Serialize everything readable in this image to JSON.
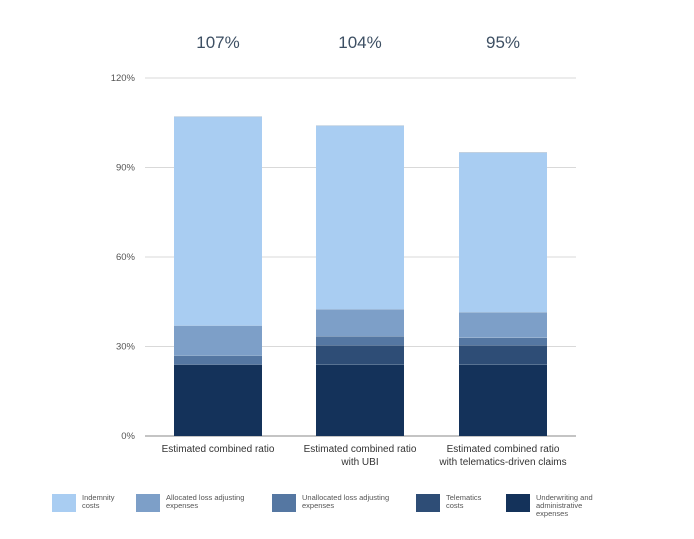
{
  "chart_data": {
    "type": "bar",
    "stacked": true,
    "categories": [
      [
        "Estimated combined ratio"
      ],
      [
        "Estimated combined ratio",
        "with UBI"
      ],
      [
        "Estimated combined ratio",
        "with telematics-driven claims"
      ]
    ],
    "totals": [
      "107%",
      "104%",
      "95%"
    ],
    "yticks": [
      "0%",
      "30%",
      "60%",
      "90%",
      "120%"
    ],
    "ylim": [
      0,
      120
    ],
    "grid": true,
    "legend_position": "bottom",
    "series": [
      {
        "name": "Underwriting and administrative expenses",
        "color": "#14325a",
        "values": [
          24,
          24,
          24
        ]
      },
      {
        "name": "Telematics costs",
        "color": "#2e4d76",
        "values": [
          0,
          6.5,
          6.5
        ]
      },
      {
        "name": "Unallocated loss adjusting expenses",
        "color": "#5577a2",
        "values": [
          3,
          3,
          2.5
        ]
      },
      {
        "name": "Allocated loss adjusting expenses",
        "color": "#7d9fc8",
        "values": [
          10,
          9,
          8.5
        ]
      },
      {
        "name": "Indemnity costs",
        "color": "#a9cdf2",
        "values": [
          70,
          61.5,
          53.5
        ]
      }
    ]
  },
  "legend": [
    {
      "lines": [
        "Indemnity",
        "costs"
      ],
      "color": "#a9cdf2"
    },
    {
      "lines": [
        "Allocated loss adjusting",
        "expenses"
      ],
      "color": "#7d9fc8"
    },
    {
      "lines": [
        "Unallocated loss adjusting",
        "expenses"
      ],
      "color": "#5577a2"
    },
    {
      "lines": [
        "Telematics",
        "costs"
      ],
      "color": "#2e4d76"
    },
    {
      "lines": [
        "Underwriting and administrative",
        "expenses"
      ],
      "color": "#14325a"
    }
  ]
}
